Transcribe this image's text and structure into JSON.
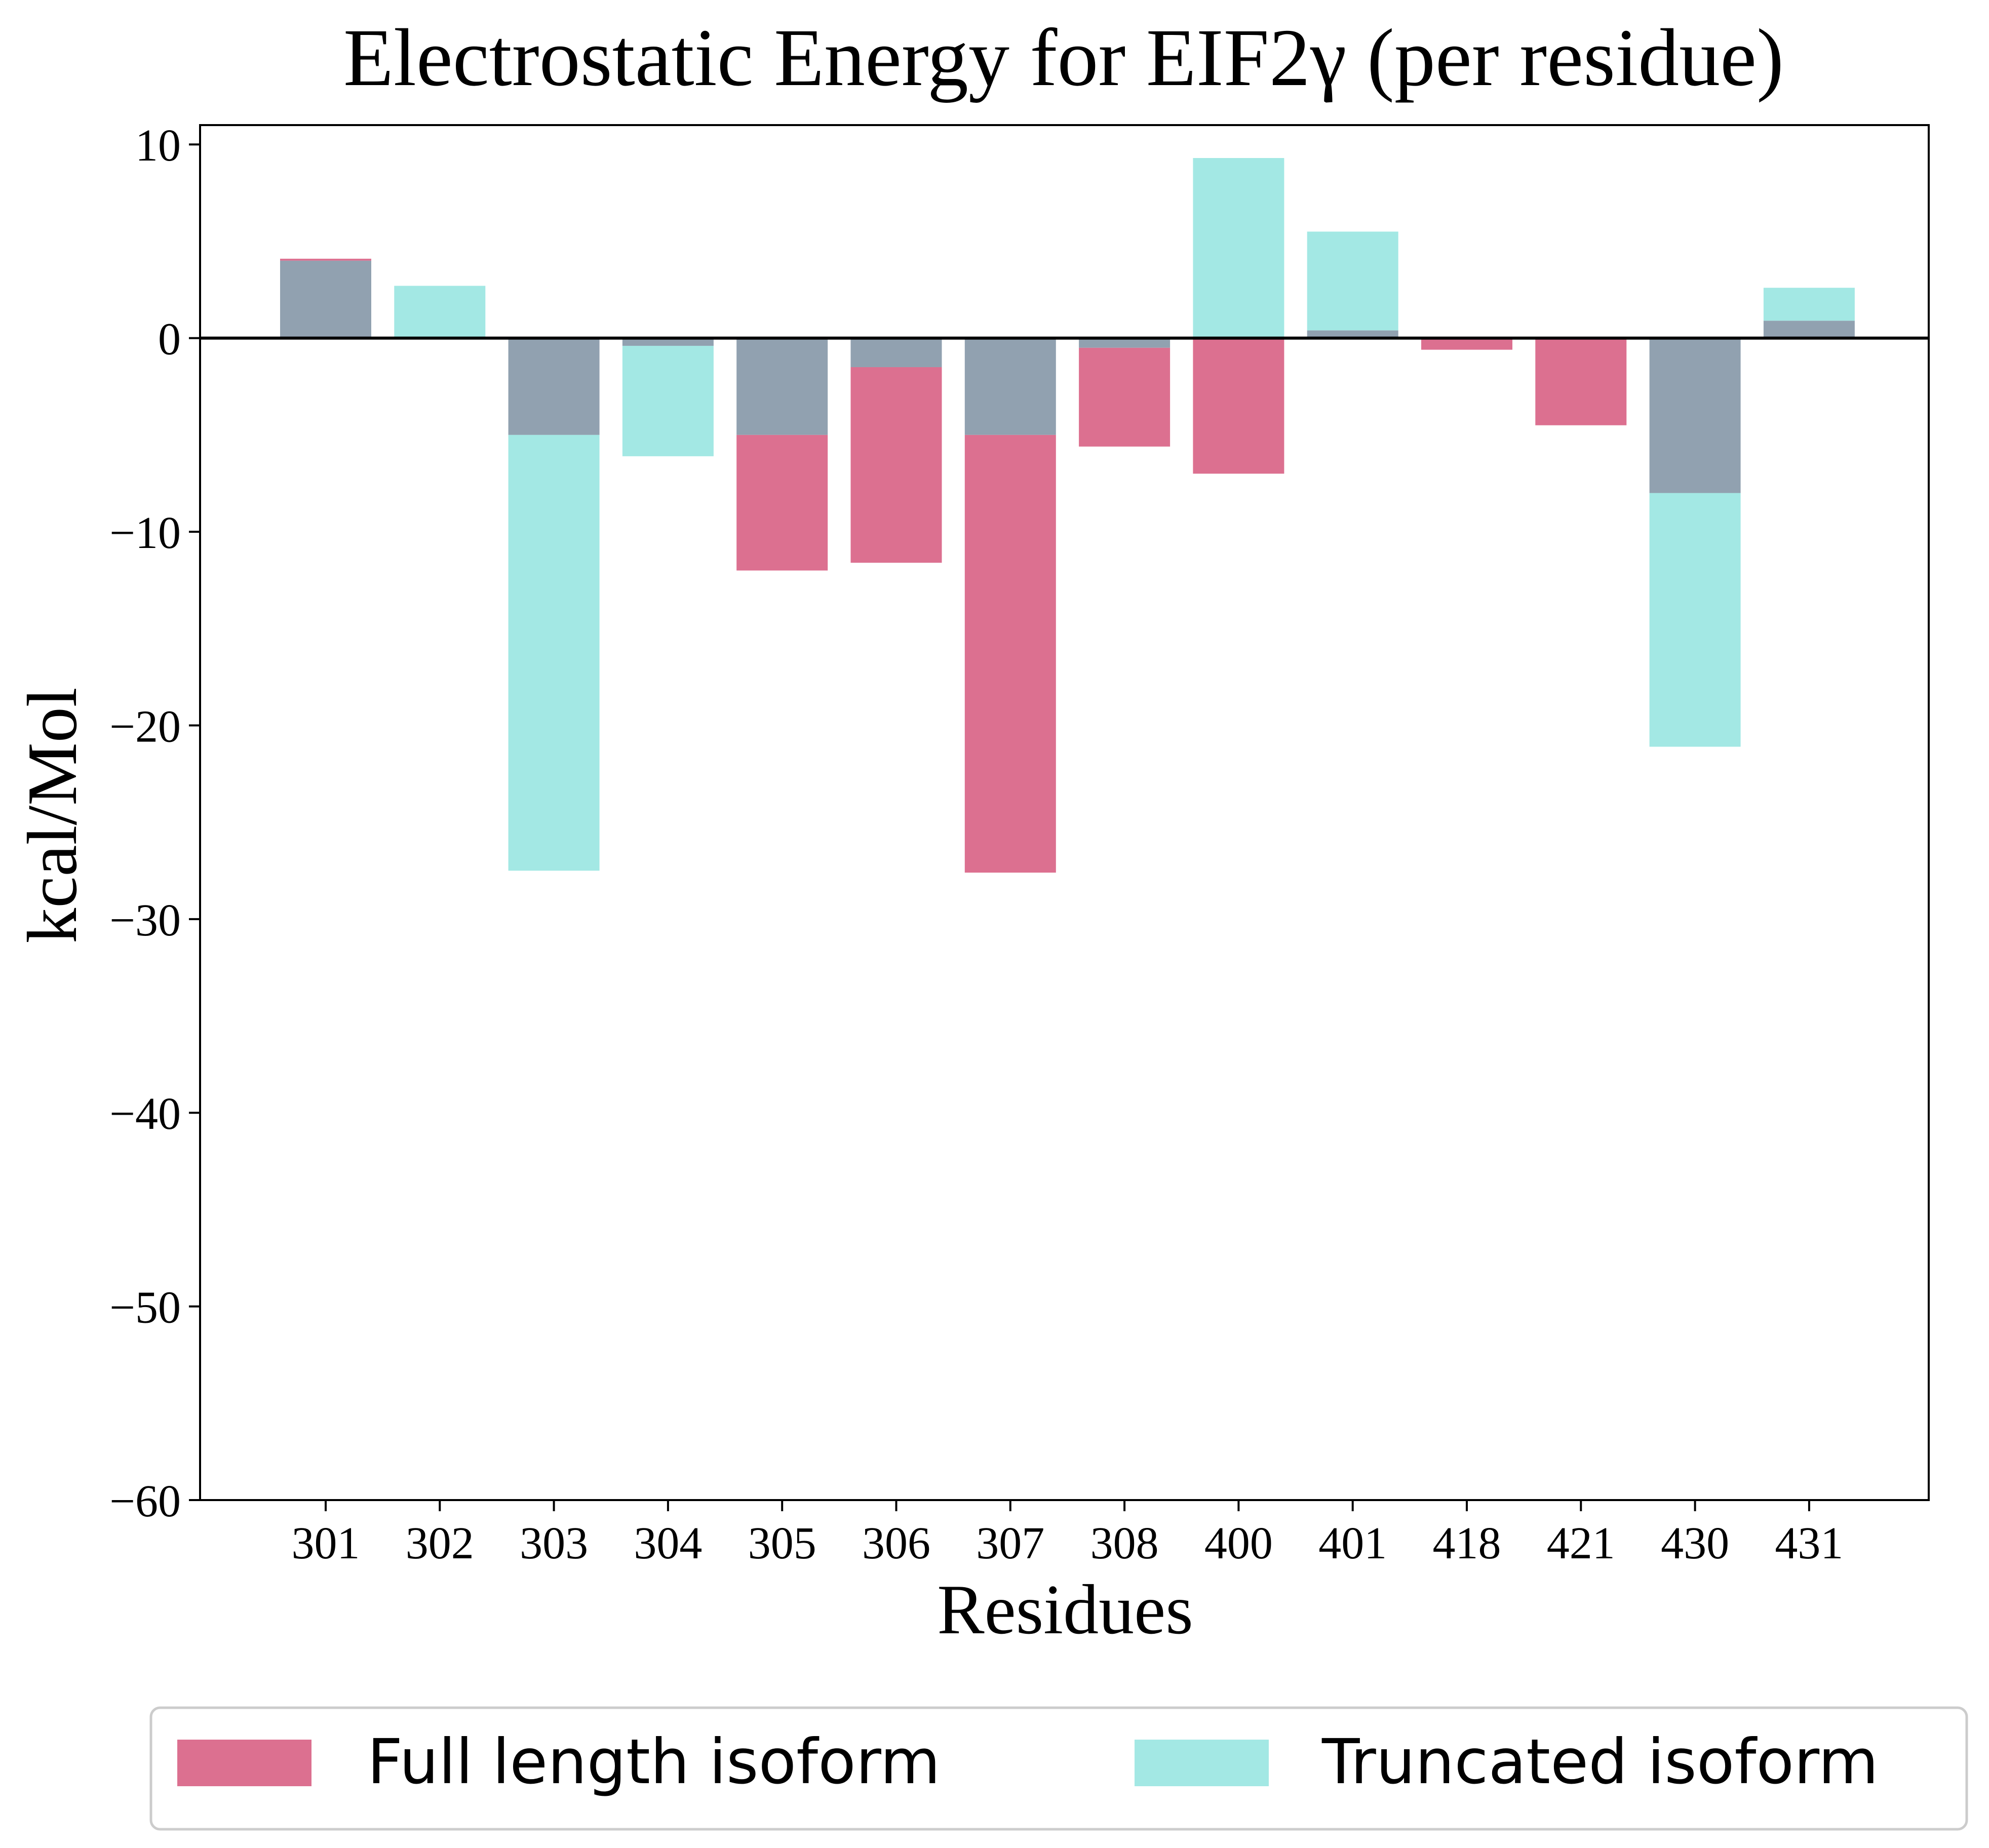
{
  "chart_data": {
    "type": "bar",
    "title": "Electrostatic Energy for EIF2γ (per residue)",
    "xlabel": "Residues",
    "ylabel": "kcal/Mol",
    "categories": [
      "301",
      "302",
      "303",
      "304",
      "305",
      "306",
      "307",
      "308",
      "400",
      "401",
      "418",
      "421",
      "430",
      "431"
    ],
    "ylim": [
      -60,
      11
    ],
    "yticks": [
      10,
      0,
      -10,
      -20,
      -30,
      -40,
      -50,
      -60
    ],
    "ytick_labels": [
      "10",
      "0",
      "−10",
      "−20",
      "−30",
      "−40",
      "−50",
      "−60"
    ],
    "series": [
      {
        "name": "Full length isoform",
        "color": "#dc7090",
        "values": [
          4.1,
          0,
          -5.0,
          -0.4,
          -12.0,
          -11.6,
          -27.6,
          -5.6,
          -7.0,
          0.4,
          -0.6,
          -4.5,
          -8.0,
          0.9
        ]
      },
      {
        "name": "Truncated isoform",
        "color": "#a3e8e4",
        "values": [
          4.0,
          2.7,
          -27.5,
          -6.1,
          -5.0,
          -1.5,
          -5.0,
          -0.5,
          9.3,
          5.5,
          0,
          0,
          -21.1,
          2.6
        ]
      }
    ],
    "overlap_color": "#91a1b0",
    "legend_position": "bottom",
    "grid": false
  }
}
